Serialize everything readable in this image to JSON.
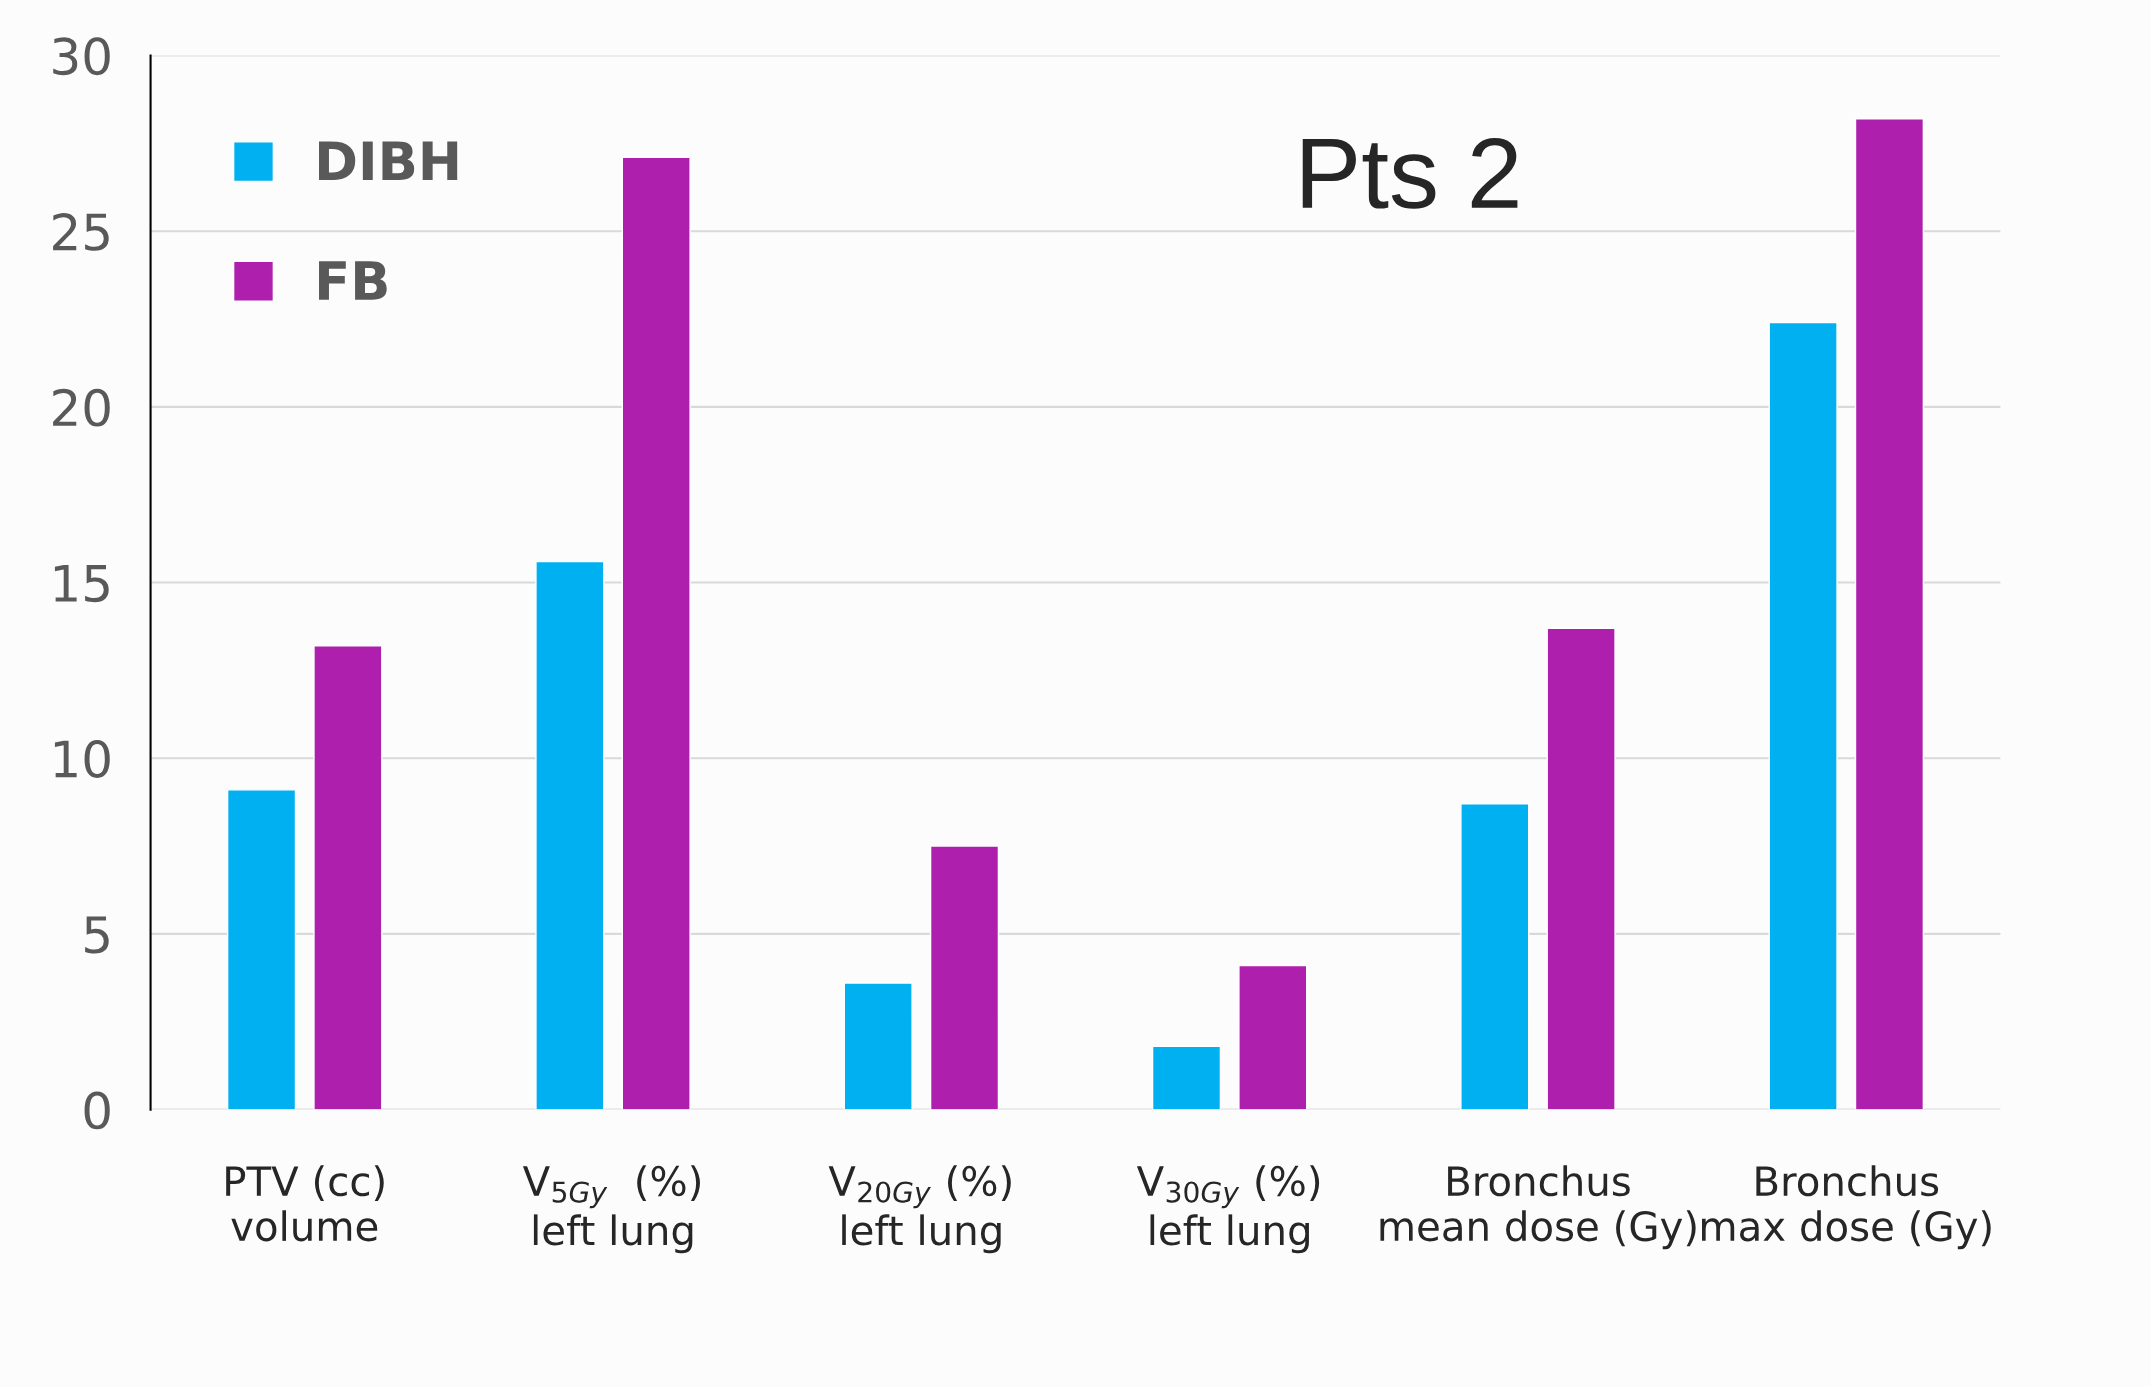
{
  "chart_data": {
    "type": "bar",
    "categories": [
      "PTV (cc)\nvolume",
      "V$_{5Gy}$  (%)\nleft lung",
      "V$_{20Gy}$ (%)\nleft lung",
      "V$_{30Gy}$ (%)\nleft lung",
      "Bronchus\nmean dose (Gy)",
      "Bronchus\nmax dose (Gy)"
    ],
    "series": [
      {
        "name": "DIBH",
        "color": "#00b0f0",
        "values": [
          9.1,
          15.6,
          3.6,
          1.8,
          8.7,
          22.4
        ]
      },
      {
        "name": "FB",
        "color": "#ae1fae",
        "values": [
          13.2,
          27.1,
          7.5,
          4.1,
          13.7,
          28.2
        ]
      }
    ],
    "ylim": [
      0,
      30
    ],
    "yticks": [
      0,
      5,
      10,
      15,
      20,
      25,
      30
    ],
    "grid": "y",
    "legend": "top left",
    "annotations": [
      "Pts 2"
    ]
  }
}
